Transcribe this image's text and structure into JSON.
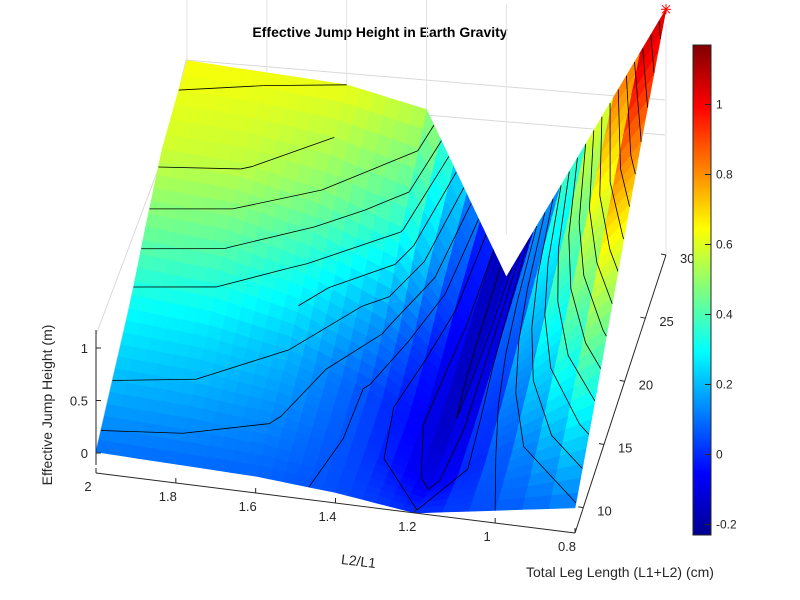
{
  "chart_data": {
    "type": "surface",
    "title": "Effective Jump Height in Earth Gravity",
    "xlabel": "L2/L1",
    "ylabel": "Total Leg Length (L1+L2) (cm)",
    "zlabel": "Effective Jump Height (m)",
    "x_ticks": [
      "2",
      "1.8",
      "1.6",
      "1.4",
      "1.2",
      "1",
      "0.8"
    ],
    "y_ticks": [
      "10",
      "15",
      "20",
      "25",
      "30"
    ],
    "z_ticks": [
      "0",
      "0.5",
      "1"
    ],
    "colorbar_ticks": [
      "-0.2",
      "0",
      "0.2",
      "0.4",
      "0.6",
      "0.8",
      "1"
    ],
    "colorbar_range": [
      -0.23,
      1.17
    ],
    "colormap": "jet",
    "grid": true,
    "x": [
      0.8,
      1.2,
      1.4,
      1.6,
      1.8,
      2.0
    ],
    "y": [
      8,
      12,
      16,
      20,
      24,
      30
    ],
    "z": [
      [
        0.12,
        0.0,
        0.05,
        0.08,
        0.09,
        0.1
      ],
      [
        0.3,
        -0.1,
        0.05,
        0.14,
        0.18,
        0.2
      ],
      [
        0.5,
        -0.14,
        0.05,
        0.2,
        0.27,
        0.3
      ],
      [
        0.7,
        -0.16,
        0.15,
        0.32,
        0.42,
        0.45
      ],
      [
        0.9,
        -0.18,
        0.35,
        0.48,
        0.56,
        0.58
      ],
      [
        1.17,
        -0.2,
        0.55,
        0.62,
        0.63,
        0.64
      ]
    ],
    "max_point": {
      "x": 0.8,
      "y": 30,
      "z": 1.17,
      "marker": "*",
      "color": "#ff0000"
    }
  }
}
